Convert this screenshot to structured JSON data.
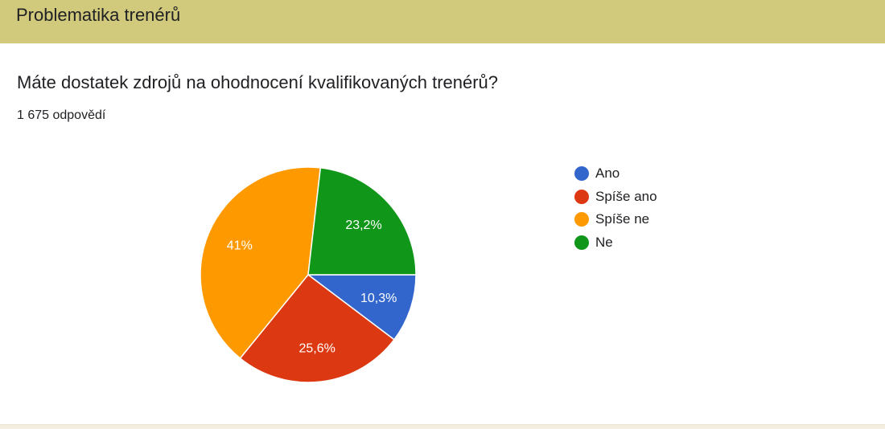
{
  "section": {
    "title": "Problematika trenérů"
  },
  "question": {
    "text": "Máte dostatek zdrojů na ohodnocení kvalifikovaných trenérů?",
    "responses": "1 675 odpovědí"
  },
  "chart_data": {
    "type": "pie",
    "title": "",
    "categories": [
      "Ano",
      "Spíše ano",
      "Spíše ne",
      "Ne"
    ],
    "values": [
      10.3,
      25.6,
      41,
      23.2
    ],
    "labels": [
      "10,3%",
      "25,6%",
      "41%",
      "23,2%"
    ],
    "colors": [
      "#3366cc",
      "#dc3912",
      "#ff9900",
      "#109618"
    ],
    "legend_position": "right",
    "start": "3 o'clock, clockwise"
  }
}
